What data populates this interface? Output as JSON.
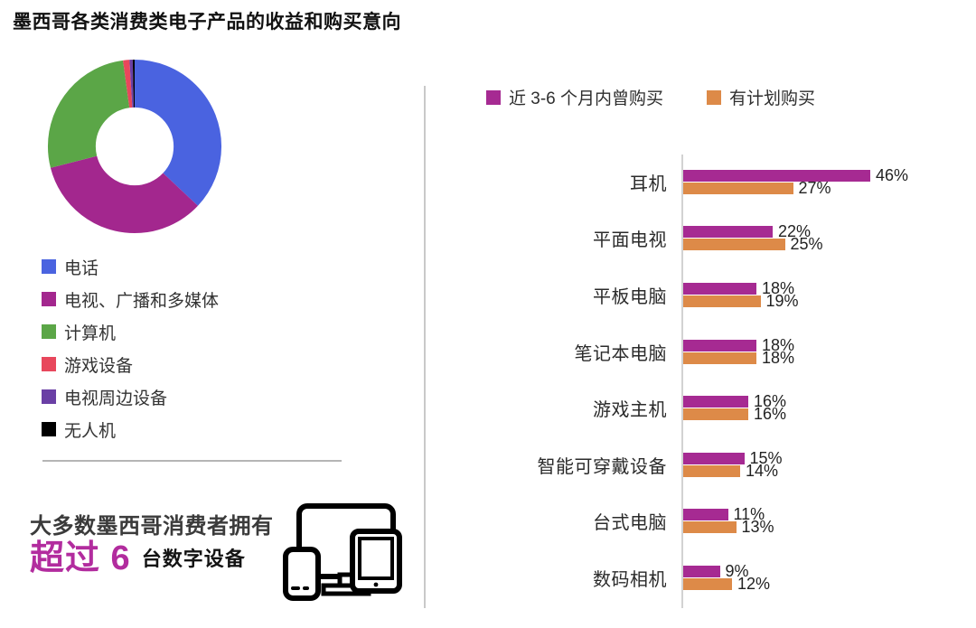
{
  "title": "墨西哥各类消费类电子产品的收益和购买意向",
  "colors": {
    "magenta_bar": "#a62a92",
    "orange_bar": "#dd8a48",
    "divider": "#c9c9c9",
    "highlight_text": "#b22c9e"
  },
  "chart_data": [
    {
      "type": "pie",
      "title": "墨西哥各类消费类电子产品的收益",
      "donut_hole": 0.45,
      "legend_position": "bottom-left",
      "segments": [
        {
          "label": "电话",
          "value": 37,
          "color": "#4a63e0"
        },
        {
          "label": "电视、广播和多媒体",
          "value": 34,
          "color": "#a3278e"
        },
        {
          "label": "计算机",
          "value": 26.8,
          "color": "#5ba647"
        },
        {
          "label": "游戏设备",
          "value": 1.2,
          "color": "#e8475c"
        },
        {
          "label": "电视周边设备",
          "value": 0.6,
          "color": "#6a3fa5"
        },
        {
          "label": "无人机",
          "value": 0.4,
          "color": "#000000"
        }
      ]
    },
    {
      "type": "bar",
      "orientation": "horizontal",
      "legend_position": "top",
      "xlim": [
        0,
        50
      ],
      "unit": "%",
      "categories": [
        "耳机",
        "平面电视",
        "平板电脑",
        "笔记本电脑",
        "游戏主机",
        "智能可穿戴设备",
        "台式电脑",
        "数码相机"
      ],
      "series": [
        {
          "name": "近 3-6 个月内曾购买",
          "color": "#a62a92",
          "values": [
            46,
            22,
            18,
            18,
            16,
            15,
            11,
            9
          ]
        },
        {
          "name": "有计划购买",
          "color": "#dd8a48",
          "values": [
            27,
            25,
            19,
            18,
            16,
            14,
            13,
            12
          ]
        }
      ]
    }
  ],
  "fact": {
    "line1": "大多数墨西哥消费者拥有",
    "highlight": "超过 6",
    "rest": "台数字设备"
  },
  "icons": {
    "devices": "monitor-tablet-phone-icons"
  }
}
